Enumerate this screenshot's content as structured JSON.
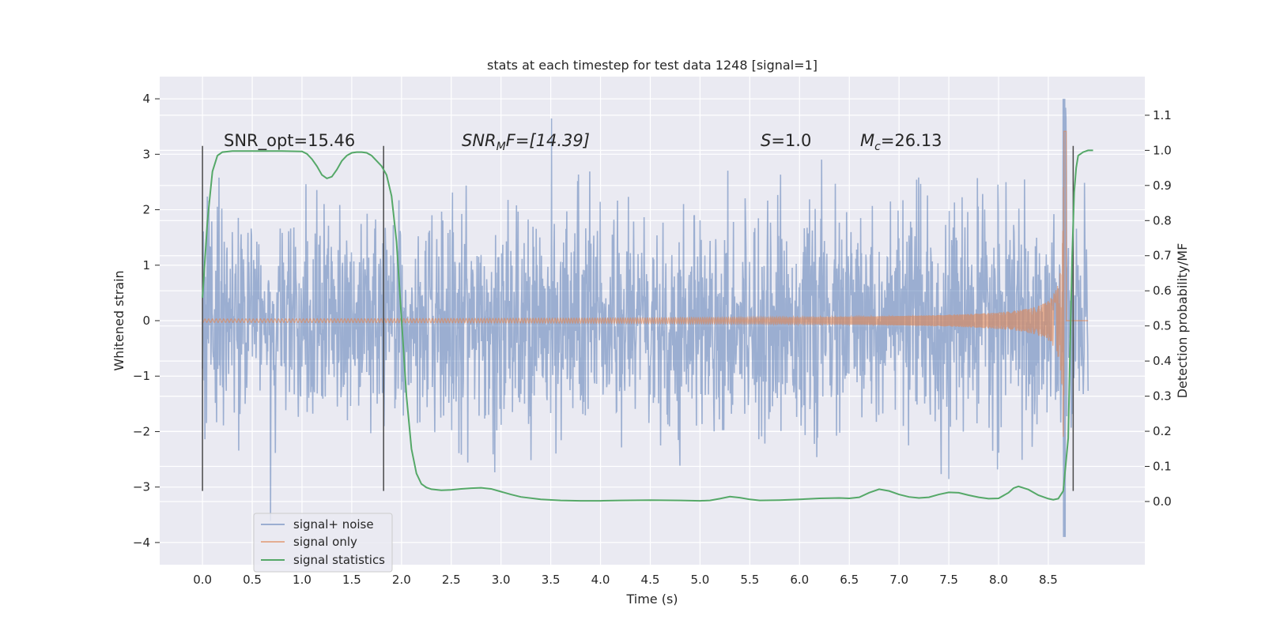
{
  "chart_data": {
    "type": "line",
    "title": "stats at each timestep for test data 1248 [signal=1]",
    "xlabel": "Time (s)",
    "ylabel": "Whitened strain",
    "y2label": "Detection probability/MF",
    "xlim": [
      -0.43,
      9.47
    ],
    "ylim": [
      -4.4,
      4.4
    ],
    "y2lim": [
      -0.18,
      1.21
    ],
    "x_ticks": [
      "0.0",
      "0.5",
      "1.0",
      "1.5",
      "2.0",
      "2.5",
      "3.0",
      "3.5",
      "4.0",
      "4.5",
      "5.0",
      "5.5",
      "6.0",
      "6.5",
      "7.0",
      "7.5",
      "8.0",
      "8.5"
    ],
    "y_ticks": [
      "4",
      "3",
      "2",
      "1",
      "0",
      "−1",
      "−2",
      "−3",
      "−4"
    ],
    "y2_ticks": [
      "1.1",
      "1.0",
      "0.9",
      "0.8",
      "0.7",
      "0.6",
      "0.5",
      "0.4",
      "0.3",
      "0.2",
      "0.1",
      "0.0"
    ],
    "grid": true,
    "legend_position": "lower-left",
    "annotations": {
      "snr_opt": "SNR_opt=15.46",
      "snr_mf_main": "SNR",
      "snr_mf_sub": "M",
      "snr_mf_rest": "F=[14.39]",
      "s_main": "S",
      "s_rest": "=1.0",
      "mc_main": "M",
      "mc_sub": "c",
      "mc_rest": "=26.13"
    },
    "window_markers_x": [
      0.0,
      1.82,
      8.75
    ],
    "series": [
      {
        "name": "signal+ noise",
        "color": "#4c72b0",
        "kind": "noisy strain",
        "x_range": [
          0.0,
          8.9
        ],
        "envelope": 1.3,
        "peak_extremes": [
          4.0,
          -3.9
        ]
      },
      {
        "name": "signal only",
        "color": "#dd8452",
        "kind": "chirp",
        "merger_time": 8.66,
        "peak_amplitude": 3.6
      },
      {
        "name": "signal statistics",
        "color": "#55a868",
        "axis": "right",
        "x": [
          0.0,
          0.05,
          0.1,
          0.15,
          0.2,
          0.3,
          0.5,
          0.8,
          1.0,
          1.05,
          1.1,
          1.15,
          1.2,
          1.25,
          1.3,
          1.35,
          1.4,
          1.45,
          1.5,
          1.55,
          1.6,
          1.65,
          1.7,
          1.75,
          1.8,
          1.85,
          1.9,
          1.95,
          2.0,
          2.05,
          2.1,
          2.15,
          2.2,
          2.25,
          2.3,
          2.4,
          2.5,
          2.6,
          2.7,
          2.8,
          2.9,
          3.0,
          3.1,
          3.2,
          3.4,
          3.6,
          3.8,
          4.0,
          4.2,
          4.5,
          4.8,
          5.0,
          5.1,
          5.2,
          5.3,
          5.4,
          5.5,
          5.6,
          5.8,
          6.0,
          6.2,
          6.4,
          6.5,
          6.6,
          6.7,
          6.8,
          6.9,
          7.0,
          7.1,
          7.2,
          7.3,
          7.4,
          7.5,
          7.6,
          7.7,
          7.8,
          7.9,
          8.0,
          8.1,
          8.15,
          8.2,
          8.3,
          8.4,
          8.5,
          8.55,
          8.6,
          8.65,
          8.7,
          8.72,
          8.74,
          8.76,
          8.78,
          8.8,
          8.85,
          8.9,
          8.95
        ],
        "values": [
          0.58,
          0.8,
          0.94,
          0.985,
          0.995,
          0.998,
          0.998,
          0.998,
          0.997,
          0.99,
          0.975,
          0.955,
          0.93,
          0.92,
          0.925,
          0.945,
          0.97,
          0.985,
          0.993,
          0.995,
          0.995,
          0.993,
          0.985,
          0.97,
          0.955,
          0.93,
          0.87,
          0.74,
          0.52,
          0.3,
          0.15,
          0.08,
          0.05,
          0.04,
          0.035,
          0.032,
          0.033,
          0.036,
          0.038,
          0.039,
          0.036,
          0.028,
          0.02,
          0.013,
          0.006,
          0.003,
          0.002,
          0.002,
          0.003,
          0.004,
          0.003,
          0.002,
          0.003,
          0.008,
          0.014,
          0.011,
          0.006,
          0.003,
          0.004,
          0.006,
          0.009,
          0.01,
          0.009,
          0.012,
          0.025,
          0.035,
          0.03,
          0.02,
          0.013,
          0.01,
          0.012,
          0.02,
          0.026,
          0.025,
          0.018,
          0.012,
          0.008,
          0.009,
          0.025,
          0.038,
          0.043,
          0.034,
          0.018,
          0.008,
          0.005,
          0.008,
          0.03,
          0.18,
          0.45,
          0.7,
          0.88,
          0.95,
          0.985,
          0.995,
          1.0,
          1.0
        ]
      }
    ]
  }
}
